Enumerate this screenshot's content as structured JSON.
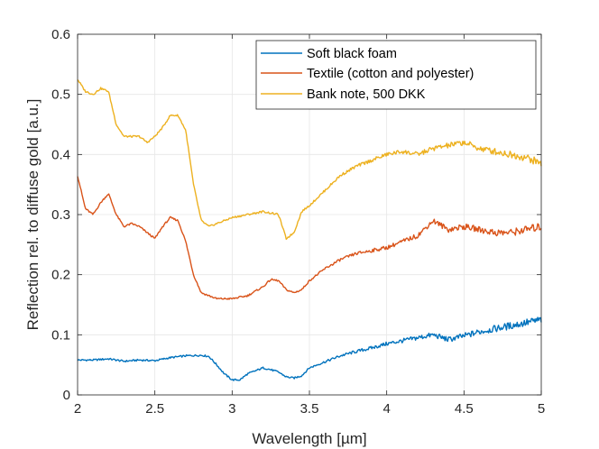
{
  "chart_data": {
    "type": "line",
    "title": "",
    "xlabel": "Wavelength [µm]",
    "ylabel": "Reflection rel. to diffuse gold [a.u.]",
    "xlim": [
      2,
      5
    ],
    "ylim": [
      0,
      0.6
    ],
    "xticks": [
      2,
      2.5,
      3,
      3.5,
      4,
      4.5,
      5
    ],
    "xtick_labels": [
      "2",
      "2.5",
      "3",
      "3.5",
      "4",
      "4.5",
      "5"
    ],
    "yticks": [
      0,
      0.1,
      0.2,
      0.3,
      0.4,
      0.5,
      0.6
    ],
    "ytick_labels": [
      "0",
      "0.1",
      "0.2",
      "0.3",
      "0.4",
      "0.5",
      "0.6"
    ],
    "grid": true,
    "legend_position": "top-right",
    "series": [
      {
        "name": "Soft black foam",
        "color": "#0072bd",
        "x": [
          2.0,
          2.1,
          2.2,
          2.3,
          2.4,
          2.5,
          2.6,
          2.7,
          2.8,
          2.85,
          2.9,
          2.95,
          3.0,
          3.05,
          3.1,
          3.2,
          3.25,
          3.3,
          3.35,
          3.4,
          3.45,
          3.5,
          3.6,
          3.7,
          3.8,
          3.9,
          4.0,
          4.1,
          4.2,
          4.3,
          4.4,
          4.5,
          4.6,
          4.7,
          4.8,
          4.9,
          5.0
        ],
        "values": [
          0.058,
          0.058,
          0.06,
          0.056,
          0.058,
          0.057,
          0.062,
          0.065,
          0.066,
          0.064,
          0.05,
          0.035,
          0.025,
          0.025,
          0.035,
          0.045,
          0.042,
          0.038,
          0.03,
          0.028,
          0.032,
          0.045,
          0.055,
          0.065,
          0.072,
          0.078,
          0.085,
          0.09,
          0.095,
          0.1,
          0.092,
          0.098,
          0.105,
          0.11,
          0.115,
          0.12,
          0.125
        ]
      },
      {
        "name": "Textile (cotton and polyester)",
        "color": "#d95319",
        "x": [
          2.0,
          2.05,
          2.1,
          2.15,
          2.2,
          2.25,
          2.3,
          2.35,
          2.4,
          2.45,
          2.5,
          2.55,
          2.6,
          2.65,
          2.7,
          2.75,
          2.8,
          2.85,
          2.9,
          3.0,
          3.1,
          3.2,
          3.25,
          3.3,
          3.35,
          3.4,
          3.45,
          3.5,
          3.6,
          3.7,
          3.8,
          3.9,
          4.0,
          4.1,
          4.2,
          4.3,
          4.4,
          4.5,
          4.6,
          4.7,
          4.8,
          4.9,
          5.0
        ],
        "values": [
          0.365,
          0.31,
          0.3,
          0.32,
          0.335,
          0.3,
          0.28,
          0.285,
          0.28,
          0.27,
          0.26,
          0.28,
          0.295,
          0.29,
          0.255,
          0.2,
          0.17,
          0.165,
          0.16,
          0.16,
          0.165,
          0.18,
          0.192,
          0.19,
          0.175,
          0.17,
          0.175,
          0.19,
          0.21,
          0.225,
          0.235,
          0.24,
          0.245,
          0.255,
          0.265,
          0.29,
          0.275,
          0.28,
          0.275,
          0.27,
          0.27,
          0.275,
          0.28
        ]
      },
      {
        "name": "Bank note, 500 DKK",
        "color": "#edb120",
        "x": [
          2.0,
          2.05,
          2.1,
          2.15,
          2.2,
          2.25,
          2.3,
          2.35,
          2.4,
          2.45,
          2.5,
          2.55,
          2.6,
          2.65,
          2.7,
          2.75,
          2.8,
          2.85,
          2.9,
          3.0,
          3.1,
          3.2,
          3.3,
          3.35,
          3.4,
          3.45,
          3.5,
          3.6,
          3.7,
          3.8,
          3.9,
          4.0,
          4.1,
          4.2,
          4.3,
          4.4,
          4.5,
          4.6,
          4.7,
          4.8,
          4.9,
          5.0
        ],
        "values": [
          0.525,
          0.505,
          0.5,
          0.51,
          0.505,
          0.45,
          0.43,
          0.43,
          0.43,
          0.42,
          0.43,
          0.445,
          0.465,
          0.465,
          0.44,
          0.35,
          0.29,
          0.28,
          0.285,
          0.295,
          0.3,
          0.305,
          0.3,
          0.26,
          0.27,
          0.305,
          0.315,
          0.34,
          0.365,
          0.38,
          0.39,
          0.4,
          0.405,
          0.4,
          0.41,
          0.415,
          0.42,
          0.41,
          0.405,
          0.4,
          0.395,
          0.385
        ]
      }
    ]
  }
}
